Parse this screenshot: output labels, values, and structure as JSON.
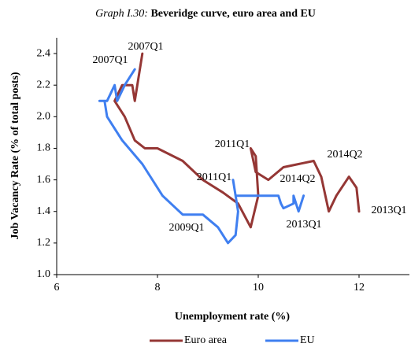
{
  "chart_data": {
    "type": "line",
    "title_prefix": "Graph I.30:",
    "title": "Beveridge curve, euro area and EU",
    "xlabel": "Unemployment rate (%)",
    "ylabel": "Job Vacancy Rate (% of total posts)",
    "xlim": [
      6,
      13
    ],
    "xticks": [
      6,
      8,
      10,
      12
    ],
    "ylim": [
      1.0,
      2.5
    ],
    "yticks": [
      {
        "value": 1.0,
        "label": "1.0"
      },
      {
        "value": 1.2,
        "label": "1.2"
      },
      {
        "value": 1.4,
        "label": "1.4"
      },
      {
        "value": 1.6,
        "label": "1.6"
      },
      {
        "value": 1.8,
        "label": "1.8"
      },
      {
        "value": 2.0,
        "label": "2.0"
      },
      {
        "value": 2.2,
        "label": "2.2"
      },
      {
        "value": 2.4,
        "label": "2.4"
      }
    ],
    "legend": "bottom",
    "series": [
      {
        "name": "Euro area",
        "color": "#953735",
        "x": [
          7.7,
          7.55,
          7.5,
          7.3,
          7.15,
          7.35,
          7.55,
          7.75,
          8.0,
          8.5,
          8.9,
          9.3,
          9.6,
          9.85,
          10.0,
          9.95,
          9.85,
          9.95,
          10.2,
          10.5,
          10.8,
          11.1,
          11.25,
          11.4,
          11.55,
          11.8,
          11.95,
          12.0
        ],
        "values": [
          2.4,
          2.1,
          2.2,
          2.2,
          2.1,
          2.0,
          1.85,
          1.8,
          1.8,
          1.72,
          1.6,
          1.52,
          1.45,
          1.3,
          1.5,
          1.75,
          1.8,
          1.65,
          1.6,
          1.68,
          1.7,
          1.72,
          1.62,
          1.4,
          1.5,
          1.62,
          1.55,
          1.4
        ]
      },
      {
        "name": "EU",
        "color": "#3f7ff0",
        "x": [
          7.55,
          7.35,
          7.2,
          7.15,
          7.0,
          6.85,
          6.95,
          7.0,
          7.3,
          7.7,
          8.1,
          8.5,
          8.9,
          9.2,
          9.4,
          9.55,
          9.6,
          9.5,
          9.55,
          10.0,
          10.4,
          10.45,
          10.5,
          10.7,
          10.7,
          10.8,
          10.9
        ],
        "values": [
          2.3,
          2.2,
          2.1,
          2.2,
          2.1,
          2.1,
          2.1,
          2.0,
          1.85,
          1.7,
          1.5,
          1.38,
          1.38,
          1.3,
          1.2,
          1.25,
          1.4,
          1.6,
          1.5,
          1.5,
          1.5,
          1.45,
          1.42,
          1.45,
          1.5,
          1.4,
          1.5
        ]
      }
    ],
    "annotations": [
      {
        "text": "2007Q1",
        "series": 0
      },
      {
        "text": "2011Q1",
        "series": 0
      },
      {
        "text": "2014Q2",
        "series": 0
      },
      {
        "text": "2013Q1",
        "series": 0
      },
      {
        "text": "2007Q1",
        "series": 1
      },
      {
        "text": "2011Q1",
        "series": 1
      },
      {
        "text": "2014Q2",
        "series": 1
      },
      {
        "text": "2013Q1",
        "series": 1
      },
      {
        "text": "2009Q1",
        "series": 1
      }
    ]
  }
}
